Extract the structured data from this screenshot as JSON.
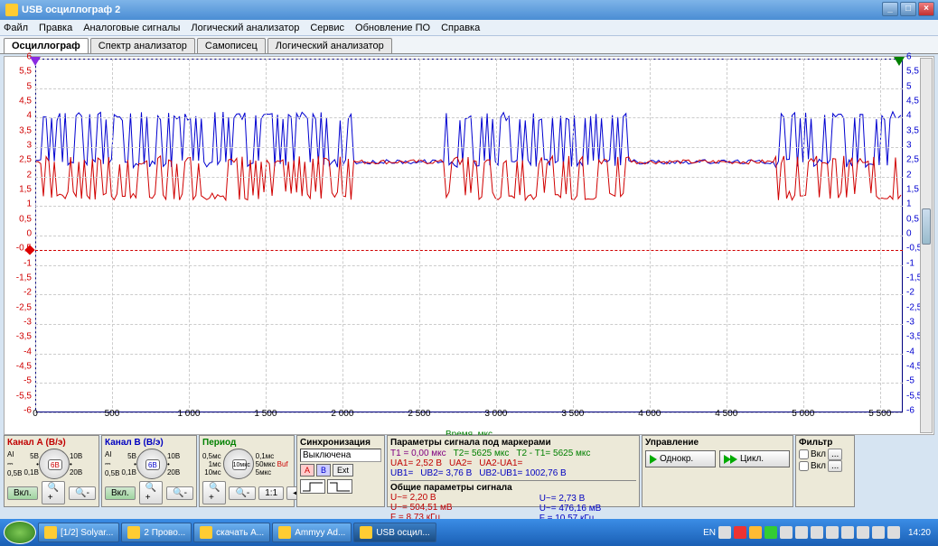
{
  "window": {
    "title": "USB осциллограф 2"
  },
  "menu": [
    "Файл",
    "Правка",
    "Аналоговые сигналы",
    "Логический анализатор",
    "Сервис",
    "Обновление ПО",
    "Справка"
  ],
  "tabs": [
    "Осциллограф",
    "Спектр анализатор",
    "Самописец",
    "Логический анализатор"
  ],
  "active_tab": 0,
  "chart": {
    "x_label": "Время, мкс",
    "x_min": 0,
    "x_max": 5625,
    "x_ticks": [
      0,
      500,
      1000,
      1500,
      2000,
      2500,
      3000,
      3500,
      4000,
      4500,
      5000,
      5500
    ],
    "x_tick_labels": [
      "0",
      "500",
      "1 000",
      "1 500",
      "2 000",
      "2 500",
      "3 000",
      "3 500",
      "4 000",
      "4 500",
      "5 000",
      "5 500"
    ],
    "y_min": -6,
    "y_max": 6,
    "y_ticks": [
      6,
      5.5,
      5,
      4.5,
      4,
      3.5,
      3,
      2.5,
      2,
      1.5,
      1,
      0.5,
      0,
      -0.5,
      -1,
      -1.5,
      -2,
      -2.5,
      -3,
      -3.5,
      -4,
      -4.5,
      -5,
      -5.5,
      -6
    ],
    "y_tick_labels": [
      "6",
      "5,5",
      "5",
      "4,5",
      "4",
      "3,5",
      "3",
      "2,5",
      "2",
      "1,5",
      "1",
      "0,5",
      "0",
      "-0,5",
      "-1",
      "-1,5",
      "-2",
      "-2,5",
      "-3",
      "-3,5",
      "-4",
      "-4,5",
      "-5",
      "-5,5",
      "-6"
    ],
    "trigger_level": -0.5,
    "cursor1_x": 0,
    "cursor2_x": 5625,
    "color_a": "#d00000",
    "color_b": "#0000d0",
    "bg": "#ffffff",
    "grid": "#cccccc",
    "signal_baseline_a": 2.5,
    "signal_baseline_b": 2.5,
    "signal_low_a": 1.2,
    "signal_high_a": 2.7,
    "signal_low_b": 2.3,
    "signal_high_b": 4.2,
    "bursts": [
      [
        50,
        2050
      ],
      [
        2650,
        3850
      ],
      [
        4800,
        5625
      ]
    ]
  },
  "channel_a": {
    "title": "Канал А (В/э)",
    "range": "6В",
    "ranges_top": [
      "5В",
      "10В"
    ],
    "range_lowL": "0,1В",
    "range_lowR": "20В",
    "state_btn": "Вкл.",
    "coupling": [
      "AI",
      "0,5B"
    ]
  },
  "channel_b": {
    "title": "Канал В (В/э)",
    "range": "6В",
    "ranges_top": [
      "5В",
      "10В"
    ],
    "range_lowL": "0,1В",
    "range_lowR": "20В",
    "state_btn": "Вкл.",
    "coupling": [
      "AI",
      "0,5B"
    ]
  },
  "period": {
    "title": "Период",
    "value": "10мкс",
    "opts_l": [
      "0,5мс",
      "1мс",
      "10мс"
    ],
    "opts_r": [
      "0,1мс",
      "50мкс",
      "5мкс"
    ],
    "buf": "Buf"
  },
  "sync": {
    "title": "Синхронизация",
    "state": "Выключена",
    "src": [
      "A",
      "B",
      "Ext"
    ]
  },
  "markers": {
    "title": "Параметры сигнала под маркерами",
    "T1": "T1 = 0,00 мкс",
    "T2": "T2= 5625 мкс",
    "dT": "T2 - T1= 5625 мкс",
    "UA1": "UA1= 2,52 В",
    "UA2": "UA2=",
    "dUA": "UA2-UA1=",
    "UB1": "UB1=",
    "UB2": "UB2= 3,76 В",
    "dUB": "UB2-UB1= 1002,76 В"
  },
  "common": {
    "title": "Общие параметры сигнала",
    "U": "U~= 2,20 В",
    "Urms": "U~= 504,51 мВ",
    "F": "F = 8,73 кГц",
    "U2": "U~= 2,73 В",
    "Urms2": "U~= 476,16 мВ",
    "F2": "F = 10,57 кГц"
  },
  "control": {
    "title": "Управление",
    "single": "Однокр.",
    "cycle": "Цикл."
  },
  "filter": {
    "title": "Фильтр",
    "on1": "Вкл",
    "on2": "Вкл"
  },
  "taskbar": {
    "items": [
      "[1/2] Solyar...",
      "2 Прово...",
      "скачать А...",
      "Ammyy Ad...",
      "USB осцил..."
    ],
    "active": 4,
    "lang": "EN",
    "clock": "14:20"
  }
}
